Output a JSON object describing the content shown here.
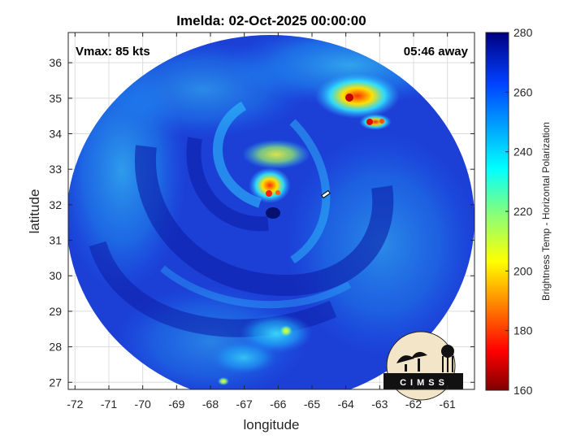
{
  "chart_data": {
    "type": "heatmap",
    "title": "Imelda: 02-Oct-2025 00:00:00",
    "xlabel": "longitude",
    "ylabel": "latitude",
    "xlim": [
      -72.2,
      -60.2
    ],
    "ylim": [
      26.8,
      36.85
    ],
    "xticks": [
      -72,
      -71,
      -70,
      -69,
      -68,
      -67,
      -66,
      -65,
      -64,
      -63,
      -62,
      -61
    ],
    "yticks": [
      27,
      28,
      29,
      30,
      31,
      32,
      33,
      34,
      35,
      36
    ],
    "grid": true,
    "annotations": {
      "vmax": "Vmax: 85 kts",
      "time_offset": "05:46 away"
    },
    "storm_center": {
      "lon": -66.05,
      "lat": 31.9
    },
    "colorbar": {
      "label": "Brightness Temp - Horizontal Polarization",
      "range": [
        160,
        280
      ],
      "ticks": [
        160,
        180,
        200,
        220,
        240,
        260,
        280
      ],
      "colormap": "jet"
    },
    "cold_regions": [
      {
        "lon": -64.0,
        "lat": 35.0,
        "min_value": 175
      },
      {
        "lon": -63.5,
        "lat": 34.35,
        "min_value": 190
      },
      {
        "lon": -66.6,
        "lat": 32.35,
        "min_value": 195
      },
      {
        "lon": -66.5,
        "lat": 33.4,
        "min_value": 215
      },
      {
        "lon": -66.0,
        "lat": 28.6,
        "min_value": 225
      }
    ]
  },
  "logo": {
    "text": "CIMSS"
  },
  "colors": {
    "grid": "#dcdcdc",
    "background_field": "#1a3ad0"
  }
}
